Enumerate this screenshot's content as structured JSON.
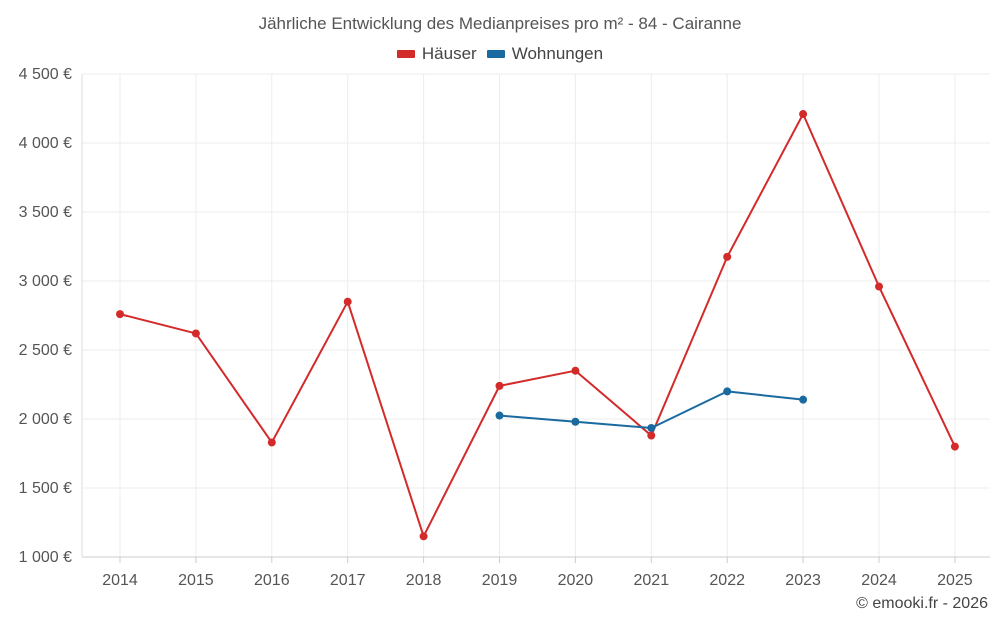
{
  "chart_data": {
    "type": "line",
    "title": "Jährliche Entwicklung des Medianpreises pro m² - 84 - Cairanne",
    "categories": [
      "2014",
      "2015",
      "2016",
      "2017",
      "2018",
      "2019",
      "2020",
      "2021",
      "2022",
      "2023",
      "2024",
      "2025"
    ],
    "y_tick_labels": [
      "4 500 €",
      "4 000 €",
      "3 500 €",
      "3 000 €",
      "2 500 €",
      "2 000 €",
      "1 500 €",
      "1 000 €"
    ],
    "y_ticks": [
      4500,
      4000,
      3500,
      3000,
      2500,
      2000,
      1500,
      1000
    ],
    "ylim": [
      1000,
      4500
    ],
    "legend_position": "top-center",
    "grid": true,
    "series": [
      {
        "name": "Häuser",
        "color": "#d32a2a",
        "values": [
          2760,
          2620,
          1830,
          2850,
          1150,
          2240,
          2350,
          1880,
          3175,
          4210,
          2960,
          1800
        ]
      },
      {
        "name": "Wohnungen",
        "color": "#1a6aa0",
        "values": [
          null,
          null,
          null,
          null,
          null,
          2025,
          1980,
          1935,
          2200,
          2140,
          null,
          null
        ]
      }
    ]
  },
  "footer": {
    "copyright": "© emooki.fr - 2026"
  }
}
